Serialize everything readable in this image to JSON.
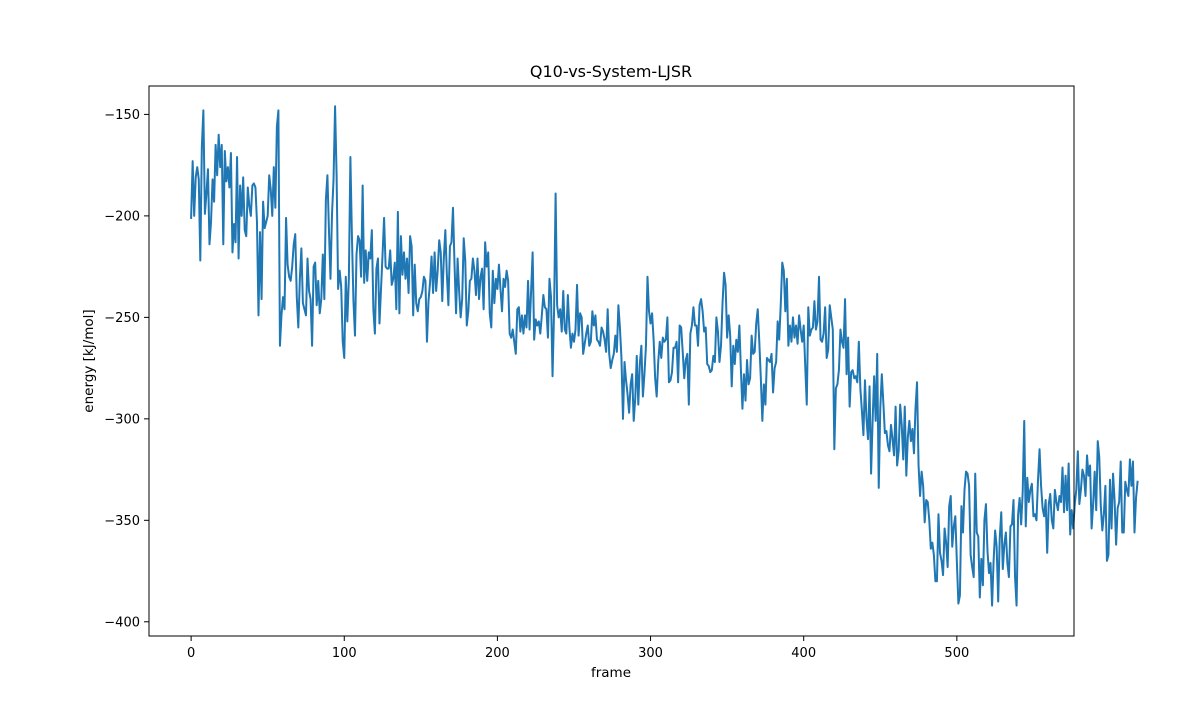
{
  "chart_data": {
    "type": "line",
    "title": "Q10-vs-System-LJSR",
    "xlabel": "frame",
    "ylabel": "energy [kJ/mol]",
    "xlim": [
      -27.5,
      576.5
    ],
    "ylim": [
      -407,
      -136
    ],
    "xticks": [
      0,
      100,
      200,
      300,
      400,
      500
    ],
    "yticks": [
      -150,
      -200,
      -250,
      -300,
      -350,
      -400
    ],
    "xtick_labels": [
      "0",
      "100",
      "200",
      "300",
      "400",
      "500"
    ],
    "ytick_labels": [
      "−150",
      "−200",
      "−250",
      "−300",
      "−350",
      "−400"
    ],
    "grid": false,
    "legend": "none",
    "line_color": "#1f77b4",
    "series": [
      {
        "values": [
          -201,
          -173,
          -200,
          -181,
          -176,
          -182,
          -222,
          -166,
          -148,
          -199,
          -189,
          -177,
          -214,
          -203,
          -182,
          -193,
          -165,
          -180,
          -160,
          -176,
          -165,
          -214,
          -168,
          -183,
          -176,
          -186,
          -169,
          -218,
          -204,
          -213,
          -171,
          -221,
          -185,
          -200,
          -181,
          -207,
          -210,
          -186,
          -195,
          -200,
          -185,
          -184,
          -186,
          -203,
          -249,
          -208,
          -241,
          -193,
          -206,
          -203,
          -200,
          -180,
          -187,
          -200,
          -176,
          -196,
          -156,
          -148,
          -264,
          -249,
          -240,
          -246,
          -201,
          -224,
          -230,
          -232,
          -225,
          -214,
          -209,
          -240,
          -255,
          -231,
          -216,
          -243,
          -246,
          -249,
          -221,
          -237,
          -241,
          -264,
          -225,
          -223,
          -244,
          -232,
          -248,
          -241,
          -219,
          -241,
          -192,
          -180,
          -207,
          -231,
          -199,
          -182,
          -146,
          -180,
          -236,
          -227,
          -235,
          -262,
          -270,
          -230,
          -252,
          -231,
          -171,
          -210,
          -242,
          -259,
          -219,
          -210,
          -212,
          -230,
          -185,
          -233,
          -217,
          -232,
          -218,
          -221,
          -207,
          -246,
          -258,
          -226,
          -221,
          -253,
          -236,
          -219,
          -201,
          -225,
          -226,
          -226,
          -217,
          -234,
          -231,
          -223,
          -246,
          -198,
          -248,
          -210,
          -229,
          -218,
          -231,
          -221,
          -238,
          -210,
          -215,
          -249,
          -224,
          -243,
          -247,
          -241,
          -240,
          -237,
          -230,
          -232,
          -262,
          -242,
          -233,
          -220,
          -238,
          -218,
          -237,
          -227,
          -212,
          -218,
          -242,
          -221,
          -207,
          -229,
          -244,
          -215,
          -213,
          -196,
          -224,
          -248,
          -221,
          -237,
          -250,
          -241,
          -211,
          -222,
          -254,
          -247,
          -232,
          -231,
          -221,
          -227,
          -239,
          -221,
          -241,
          -230,
          -226,
          -246,
          -213,
          -225,
          -218,
          -248,
          -255,
          -227,
          -243,
          -231,
          -236,
          -224,
          -236,
          -247,
          -231,
          -235,
          -227,
          -232,
          -258,
          -260,
          -256,
          -262,
          -268,
          -246,
          -245,
          -257,
          -249,
          -258,
          -249,
          -255,
          -232,
          -256,
          -237,
          -218,
          -261,
          -251,
          -254,
          -252,
          -258,
          -249,
          -239,
          -245,
          -246,
          -260,
          -231,
          -240,
          -279,
          -247,
          -189,
          -244,
          -250,
          -246,
          -257,
          -237,
          -256,
          -258,
          -239,
          -255,
          -265,
          -258,
          -262,
          -256,
          -234,
          -259,
          -248,
          -250,
          -268,
          -263,
          -258,
          -254,
          -264,
          -262,
          -247,
          -254,
          -249,
          -261,
          -262,
          -264,
          -255,
          -257,
          -261,
          -267,
          -246,
          -268,
          -275,
          -271,
          -268,
          -259,
          -267,
          -244,
          -255,
          -270,
          -300,
          -272,
          -281,
          -288,
          -297,
          -283,
          -278,
          -301,
          -290,
          -269,
          -293,
          -273,
          -264,
          -289,
          -278,
          -264,
          -230,
          -247,
          -253,
          -248,
          -261,
          -280,
          -289,
          -272,
          -262,
          -270,
          -260,
          -262,
          -261,
          -250,
          -282,
          -281,
          -277,
          -265,
          -265,
          -262,
          -282,
          -254,
          -255,
          -267,
          -280,
          -271,
          -268,
          -293,
          -258,
          -254,
          -245,
          -254,
          -254,
          -264,
          -244,
          -241,
          -247,
          -257,
          -255,
          -273,
          -274,
          -277,
          -276,
          -269,
          -272,
          -250,
          -257,
          -272,
          -264,
          -243,
          -228,
          -234,
          -260,
          -249,
          -259,
          -284,
          -264,
          -273,
          -261,
          -267,
          -254,
          -276,
          -295,
          -278,
          -291,
          -271,
          -283,
          -280,
          -259,
          -268,
          -267,
          -253,
          -246,
          -262,
          -280,
          -301,
          -283,
          -293,
          -270,
          -271,
          -272,
          -268,
          -287,
          -275,
          -272,
          -252,
          -261,
          -244,
          -223,
          -227,
          -247,
          -231,
          -264,
          -254,
          -262,
          -250,
          -260,
          -254,
          -263,
          -249,
          -256,
          -262,
          -254,
          -274,
          -293,
          -245,
          -259,
          -256,
          -255,
          -242,
          -256,
          -252,
          -230,
          -261,
          -262,
          -258,
          -245,
          -270,
          -266,
          -244,
          -250,
          -256,
          -315,
          -285,
          -283,
          -276,
          -256,
          -262,
          -265,
          -241,
          -278,
          -260,
          -294,
          -277,
          -276,
          -280,
          -279,
          -282,
          -262,
          -285,
          -296,
          -308,
          -281,
          -300,
          -310,
          -284,
          -327,
          -301,
          -279,
          -301,
          -268,
          -334,
          -295,
          -278,
          -292,
          -307,
          -306,
          -313,
          -316,
          -303,
          -310,
          -318,
          -294,
          -323,
          -316,
          -293,
          -303,
          -320,
          -294,
          -328,
          -309,
          -301,
          -311,
          -305,
          -317,
          -295,
          -282,
          -323,
          -338,
          -326,
          -333,
          -351,
          -340,
          -341,
          -350,
          -364,
          -361,
          -367,
          -380,
          -380,
          -347,
          -366,
          -370,
          -377,
          -354,
          -361,
          -373,
          -343,
          -338,
          -363,
          -353,
          -348,
          -370,
          -391,
          -387,
          -343,
          -356,
          -335,
          -326,
          -327,
          -333,
          -367,
          -373,
          -378,
          -327,
          -356,
          -358,
          -388,
          -369,
          -382,
          -350,
          -342,
          -365,
          -376,
          -371,
          -392,
          -370,
          -355,
          -363,
          -390,
          -359,
          -346,
          -374,
          -362,
          -356,
          -371,
          -378,
          -353,
          -352,
          -340,
          -378,
          -392,
          -347,
          -339,
          -352,
          -336,
          -301,
          -353,
          -329,
          -341,
          -335,
          -332,
          -348,
          -347,
          -350,
          -330,
          -315,
          -333,
          -344,
          -348,
          -340,
          -366,
          -342,
          -337,
          -350,
          -354,
          -335,
          -341,
          -345,
          -338,
          -341,
          -324,
          -346,
          -328,
          -345,
          -322,
          -357,
          -345,
          -354,
          -342,
          -335,
          -316,
          -342,
          -335,
          -325,
          -328,
          -338,
          -318,
          -328,
          -323,
          -354,
          -342,
          -326,
          -345,
          -311,
          -319,
          -343,
          -355,
          -347,
          -333,
          -370,
          -367,
          -330,
          -354,
          -327,
          -340,
          -362,
          -344,
          -341,
          -321,
          -356,
          -356,
          -331,
          -335,
          -338,
          -320,
          -333,
          -321,
          -356,
          -339,
          -331
        ]
      }
    ]
  }
}
